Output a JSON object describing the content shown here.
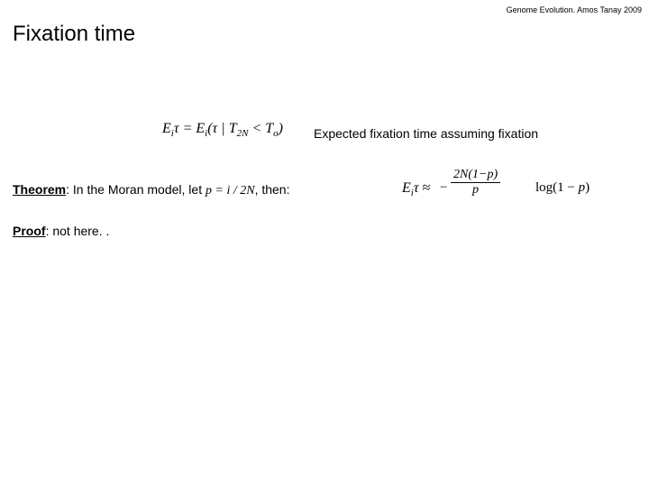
{
  "header_note": "Genome Evolution. Amos Tanay 2009",
  "title": "Fixation time",
  "expected_label": "Expected fixation time assuming fixation",
  "formula1": {
    "E": "E",
    "i": "i",
    "tau": "τ",
    "eq": " = ",
    "lp": "(",
    "tau2": "τ",
    "bar": " | ",
    "T": "T",
    "sub2N": "2N",
    "lt": " < ",
    "T2": "T",
    "subo": "o",
    "rp": ")"
  },
  "theorem": {
    "label": "Theorem",
    "text1": ": In the Moran model, let ",
    "p": "p",
    "text2": " = ",
    "i": "i",
    "text3": " / ",
    "twoN": "2N",
    "text4": ", then:"
  },
  "formula2": {
    "lhs_E": "E",
    "lhs_i": "i",
    "lhs_tau": "τ",
    "approx": " ≈ ",
    "neg": "−",
    "num": "2N(1−p)",
    "den": "p",
    "log": "log(1 − ",
    "p2": "p",
    "rp": ")"
  },
  "proof": {
    "label": "Proof",
    "text": ": not here. ."
  }
}
